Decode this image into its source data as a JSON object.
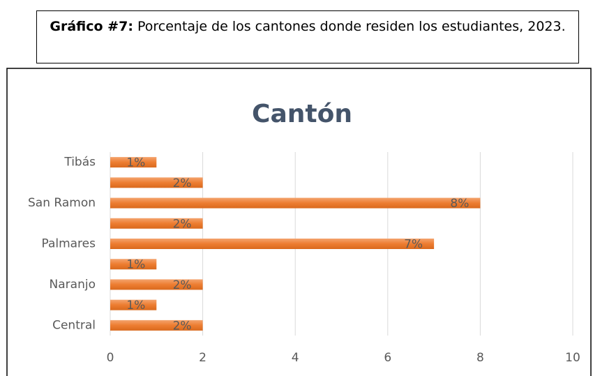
{
  "caption": {
    "label": "Gráfico #7:",
    "text": "Porcentaje de los cantones donde residen los estudiantes, 2023."
  },
  "chart_data": {
    "type": "bar",
    "orientation": "horizontal",
    "title": "Cantón",
    "categories": [
      "Tibás",
      null,
      "San Ramon",
      null,
      "Palmares",
      null,
      "Naranjo",
      null,
      "Central"
    ],
    "values": [
      1,
      2,
      8,
      2,
      7,
      1,
      2,
      1,
      2
    ],
    "value_labels": [
      "1%",
      "2%",
      "8%",
      "2%",
      "7%",
      "1%",
      "2%",
      "1%",
      "2%"
    ],
    "color": "#ed7d31",
    "xlim": [
      0,
      10
    ],
    "xticks": [
      0,
      2,
      4,
      6,
      8,
      10
    ],
    "grid": true
  }
}
